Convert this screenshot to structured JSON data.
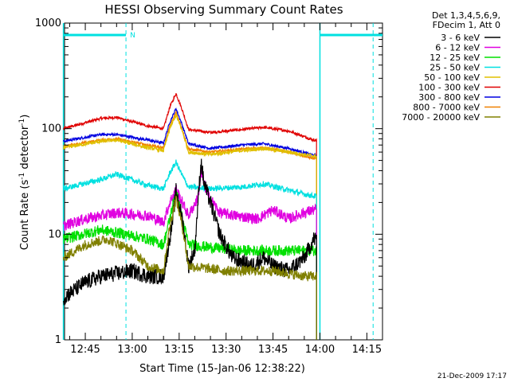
{
  "chart_data": {
    "type": "line",
    "title": "HESSI Observing Summary Count Rates",
    "xlabel": "Start Time (15-Jan-06 12:38:22)",
    "ylabel_main": "Count Rate (s",
    "ylabel_sup1": "-1",
    "ylabel_mid": " detector",
    "ylabel_sup2": "-1",
    "ylabel_end": ")",
    "yscale": "log",
    "ylim": [
      1,
      1000
    ],
    "xlim": [
      "12:38:22",
      "14:20:00"
    ],
    "x_ticks": [
      "12:45",
      "13:00",
      "13:15",
      "13:30",
      "13:45",
      "14:00",
      "14:15"
    ],
    "y_ticks": [
      "1",
      "10",
      "100",
      "1000"
    ],
    "legend_header": [
      "Det 1,3,4,5,6,9,",
      "FDecim 1, Att 0"
    ],
    "legend_position": "right",
    "series": [
      {
        "name": "3 - 6 keV",
        "color": "#000000"
      },
      {
        "name": "6 - 12 keV",
        "color": "#e000e0"
      },
      {
        "name": "12 - 25 keV",
        "color": "#00e000"
      },
      {
        "name": "25 - 50 keV",
        "color": "#00e0e0"
      },
      {
        "name": "50 - 100 keV",
        "color": "#e0c000"
      },
      {
        "name": "100 - 300 keV",
        "color": "#e00000"
      },
      {
        "name": "300 - 800 keV",
        "color": "#0000e0"
      },
      {
        "name": "800 - 7000 keV",
        "color": "#f08000"
      },
      {
        "name": "7000 - 20000 keV",
        "color": "#808000"
      }
    ],
    "series_profiles": {
      "3 - 6 keV": [
        [
          "12:38",
          2.5
        ],
        [
          "12:45",
          3.5
        ],
        [
          "12:50",
          4.0
        ],
        [
          "13:00",
          4.5
        ],
        [
          "13:05",
          4.0
        ],
        [
          "13:10",
          4.0
        ],
        [
          "13:13",
          14
        ],
        [
          "13:14",
          26
        ],
        [
          "13:16",
          14
        ],
        [
          "13:18",
          5
        ],
        [
          "13:20",
          7
        ],
        [
          "13:21",
          20
        ],
        [
          "13:22",
          48
        ],
        [
          "13:23",
          30
        ],
        [
          "13:25",
          20
        ],
        [
          "13:28",
          10
        ],
        [
          "13:32",
          6
        ],
        [
          "13:38",
          5
        ],
        [
          "13:42",
          6
        ],
        [
          "13:45",
          5
        ],
        [
          "13:50",
          4.5
        ],
        [
          "13:55",
          6
        ],
        [
          "13:58",
          9
        ]
      ],
      "6 - 12 keV": [
        [
          "12:38",
          12
        ],
        [
          "12:45",
          14
        ],
        [
          "12:55",
          16
        ],
        [
          "13:05",
          15
        ],
        [
          "13:10",
          13
        ],
        [
          "13:12",
          20
        ],
        [
          "13:14",
          27
        ],
        [
          "13:16",
          20
        ],
        [
          "13:18",
          15
        ],
        [
          "13:21",
          22
        ],
        [
          "13:22",
          38
        ],
        [
          "13:24",
          24
        ],
        [
          "13:28",
          16
        ],
        [
          "13:33",
          15
        ],
        [
          "13:40",
          14
        ],
        [
          "13:45",
          17
        ],
        [
          "13:50",
          14
        ],
        [
          "13:55",
          16
        ],
        [
          "13:58",
          17
        ]
      ],
      "12 - 25 keV": [
        [
          "12:38",
          9
        ],
        [
          "12:50",
          11
        ],
        [
          "12:58",
          10
        ],
        [
          "13:05",
          9
        ],
        [
          "13:10",
          8
        ],
        [
          "13:12",
          14
        ],
        [
          "13:14",
          26
        ],
        [
          "13:16",
          14
        ],
        [
          "13:18",
          8
        ],
        [
          "13:25",
          7.5
        ],
        [
          "13:35",
          7
        ],
        [
          "13:45",
          7
        ],
        [
          "13:55",
          7
        ],
        [
          "13:58",
          7
        ]
      ],
      "25 - 50 keV": [
        [
          "12:38",
          27
        ],
        [
          "12:50",
          33
        ],
        [
          "12:55",
          37
        ],
        [
          "13:05",
          29
        ],
        [
          "13:10",
          27
        ],
        [
          "13:12",
          38
        ],
        [
          "13:14",
          48
        ],
        [
          "13:16",
          36
        ],
        [
          "13:18",
          28
        ],
        [
          "13:25",
          27
        ],
        [
          "13:35",
          28
        ],
        [
          "13:42",
          30
        ],
        [
          "13:48",
          27
        ],
        [
          "13:55",
          24
        ],
        [
          "13:58",
          23
        ]
      ],
      "50 - 100 keV": [
        [
          "12:38",
          66
        ],
        [
          "12:50",
          76
        ],
        [
          "12:55",
          78
        ],
        [
          "13:05",
          66
        ],
        [
          "13:10",
          62
        ],
        [
          "13:12",
          100
        ],
        [
          "13:14",
          135
        ],
        [
          "13:16",
          95
        ],
        [
          "13:18",
          60
        ],
        [
          "13:25",
          57
        ],
        [
          "13:35",
          62
        ],
        [
          "13:42",
          65
        ],
        [
          "13:50",
          60
        ],
        [
          "13:58",
          55
        ]
      ],
      "100 - 300 keV": [
        [
          "12:38",
          100
        ],
        [
          "12:50",
          125
        ],
        [
          "12:55",
          128
        ],
        [
          "13:05",
          106
        ],
        [
          "13:10",
          100
        ],
        [
          "13:12",
          160
        ],
        [
          "13:14",
          215
        ],
        [
          "13:16",
          150
        ],
        [
          "13:18",
          98
        ],
        [
          "13:25",
          92
        ],
        [
          "13:35",
          98
        ],
        [
          "13:42",
          103
        ],
        [
          "13:50",
          95
        ],
        [
          "13:58",
          78
        ]
      ],
      "300 - 800 keV": [
        [
          "12:38",
          76
        ],
        [
          "12:50",
          88
        ],
        [
          "12:55",
          88
        ],
        [
          "13:05",
          78
        ],
        [
          "13:10",
          73
        ],
        [
          "13:12",
          115
        ],
        [
          "13:14",
          155
        ],
        [
          "13:16",
          108
        ],
        [
          "13:18",
          72
        ],
        [
          "13:25",
          65
        ],
        [
          "13:35",
          70
        ],
        [
          "13:42",
          72
        ],
        [
          "13:50",
          65
        ],
        [
          "13:58",
          56
        ]
      ],
      "800 - 7000 keV": [
        [
          "12:38",
          68
        ],
        [
          "12:50",
          78
        ],
        [
          "12:55",
          80
        ],
        [
          "13:05",
          70
        ],
        [
          "13:10",
          66
        ],
        [
          "13:12",
          105
        ],
        [
          "13:14",
          142
        ],
        [
          "13:16",
          98
        ],
        [
          "13:18",
          64
        ],
        [
          "13:25",
          60
        ],
        [
          "13:35",
          64
        ],
        [
          "13:42",
          66
        ],
        [
          "13:50",
          60
        ],
        [
          "13:58",
          52
        ]
      ],
      "7000 - 20000 keV": [
        [
          "12:38",
          6
        ],
        [
          "12:45",
          8
        ],
        [
          "12:52",
          9
        ],
        [
          "13:00",
          7
        ],
        [
          "13:05",
          5
        ],
        [
          "13:10",
          4.5
        ],
        [
          "13:12",
          12
        ],
        [
          "13:14",
          22
        ],
        [
          "13:16",
          12
        ],
        [
          "13:18",
          5
        ],
        [
          "13:30",
          4.5
        ],
        [
          "13:45",
          4.5
        ],
        [
          "13:55",
          4
        ],
        [
          "13:58",
          4
        ]
      ]
    },
    "noise": {
      "3 - 6 keV": 0.35,
      "6 - 12 keV": 0.12,
      "12 - 25 keV": 0.12,
      "25 - 50 keV": 0.06,
      "50 - 100 keV": 0.04,
      "100 - 300 keV": 0.03,
      "300 - 800 keV": 0.03,
      "800 - 7000 keV": 0.03,
      "7000 - 20000 keV": 0.22
    },
    "data_end": "13:59",
    "night_bar": {
      "from": "12:38",
      "to": "12:58",
      "y": 770,
      "label": "N"
    },
    "night_bar_2": {
      "from": "14:00",
      "to": "14:20",
      "y": 770
    },
    "dashed_lines": [
      "12:58",
      "14:17"
    ],
    "solid_lines": [
      "12:38",
      "14:00"
    ]
  },
  "footer_date": "21-Dec-2009 17:17"
}
